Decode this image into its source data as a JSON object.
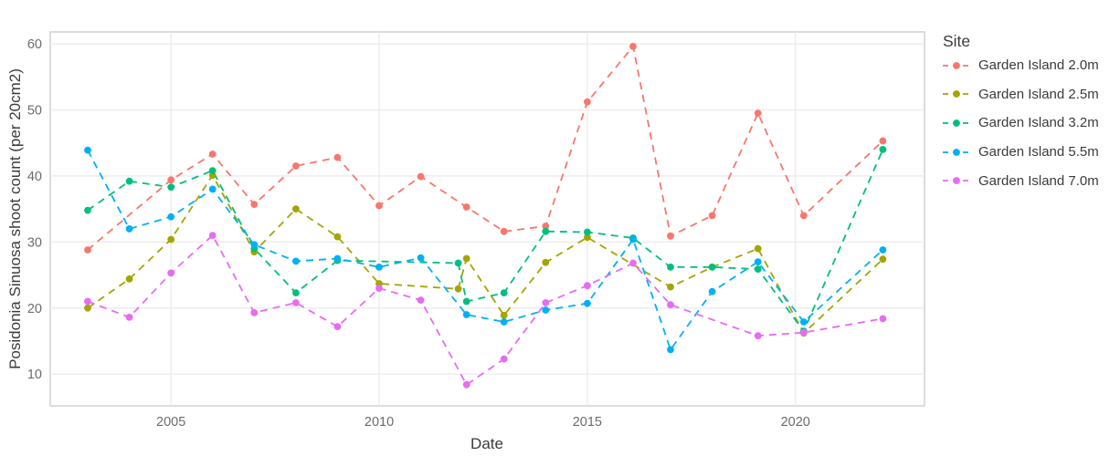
{
  "chart_data": {
    "type": "line",
    "title": "",
    "xlabel": "Date",
    "ylabel": "Posidonia Sinuosa shoot count (per 20cm2)",
    "legend_title": "Site",
    "legend_position": "right",
    "grid": true,
    "line_style": "dashed",
    "marker": "circle",
    "x_ticks": [
      2005,
      2010,
      2015,
      2020
    ],
    "y_ticks": [
      10,
      20,
      30,
      40,
      50,
      60
    ],
    "xlim": [
      2002.1,
      2023.1
    ],
    "ylim": [
      5.2,
      61.8
    ],
    "style": {
      "background": "#ffffff",
      "grid_color": "#ebebeb",
      "border_color": "#d4d4d4",
      "tick_label_color": "#6b6b6b",
      "axis_title_color": "#3a3a3a"
    },
    "series": [
      {
        "name": "Garden Island 2.0m",
        "color": "#F8766D",
        "points": [
          [
            2003,
            28.8
          ],
          [
            2005,
            39.4
          ],
          [
            2006,
            43.3
          ],
          [
            2007,
            35.7
          ],
          [
            2008,
            41.5
          ],
          [
            2009,
            42.8
          ],
          [
            2010,
            35.5
          ],
          [
            2011,
            39.9
          ],
          [
            2012.1,
            35.3
          ],
          [
            2013,
            31.6
          ],
          [
            2014,
            32.4
          ],
          [
            2015,
            51.2
          ],
          [
            2016.1,
            59.6
          ],
          [
            2017,
            30.9
          ],
          [
            2018,
            34
          ],
          [
            2019.1,
            49.5
          ],
          [
            2020.2,
            34
          ],
          [
            2022.1,
            45.3
          ]
        ]
      },
      {
        "name": "Garden Island 2.5m",
        "color": "#A3A500",
        "points": [
          [
            2003,
            20
          ],
          [
            2004,
            24.4
          ],
          [
            2005,
            30.4
          ],
          [
            2006,
            40.1
          ],
          [
            2007,
            28.5
          ],
          [
            2008,
            35
          ],
          [
            2009,
            30.8
          ],
          [
            2010,
            23.7
          ],
          [
            2011.9,
            22.9
          ],
          [
            2012.1,
            27.5
          ],
          [
            2013,
            18.9
          ],
          [
            2014,
            26.9
          ],
          [
            2015,
            30.7
          ],
          [
            2017,
            23.2
          ],
          [
            2018,
            26.2
          ],
          [
            2019.1,
            29
          ],
          [
            2020.2,
            16.2
          ],
          [
            2022.1,
            27.4
          ]
        ]
      },
      {
        "name": "Garden Island 3.2m",
        "color": "#00BF7D",
        "points": [
          [
            2003,
            34.8
          ],
          [
            2004,
            39.2
          ],
          [
            2005,
            38.3
          ],
          [
            2006,
            40.8
          ],
          [
            2007,
            29
          ],
          [
            2008,
            22.3
          ],
          [
            2009,
            27.2
          ],
          [
            2011.9,
            26.8
          ],
          [
            2012.1,
            21
          ],
          [
            2013,
            22.3
          ],
          [
            2014,
            31.6
          ],
          [
            2015,
            31.5
          ],
          [
            2016.1,
            30.6
          ],
          [
            2017,
            26.2
          ],
          [
            2018,
            26.2
          ],
          [
            2019.1,
            25.9
          ],
          [
            2020.2,
            16.5
          ],
          [
            2022.1,
            44
          ]
        ]
      },
      {
        "name": "Garden Island 5.5m",
        "color": "#00B0F6",
        "points": [
          [
            2003,
            43.9
          ],
          [
            2004,
            32
          ],
          [
            2005,
            33.8
          ],
          [
            2006,
            38
          ],
          [
            2007,
            29.6
          ],
          [
            2008,
            27.1
          ],
          [
            2009,
            27.5
          ],
          [
            2010,
            26.2
          ],
          [
            2011,
            27.6
          ],
          [
            2012.1,
            19
          ],
          [
            2013,
            17.9
          ],
          [
            2014,
            19.7
          ],
          [
            2015,
            20.7
          ],
          [
            2016.1,
            30.4
          ],
          [
            2017,
            13.7
          ],
          [
            2018,
            22.5
          ],
          [
            2019.1,
            27
          ],
          [
            2020.2,
            17.9
          ],
          [
            2022.1,
            28.8
          ]
        ]
      },
      {
        "name": "Garden Island 7.0m",
        "color": "#E76BF3",
        "points": [
          [
            2003,
            21
          ],
          [
            2004,
            18.6
          ],
          [
            2005,
            25.3
          ],
          [
            2006,
            31
          ],
          [
            2007,
            19.3
          ],
          [
            2008,
            20.8
          ],
          [
            2009,
            17.2
          ],
          [
            2010,
            23
          ],
          [
            2011,
            21.2
          ],
          [
            2012.1,
            8.4
          ],
          [
            2013,
            12.3
          ],
          [
            2014,
            20.8
          ],
          [
            2015,
            23.4
          ],
          [
            2016.1,
            26.8
          ],
          [
            2017,
            20.5
          ],
          [
            2019.1,
            15.8
          ],
          [
            2020.2,
            16.3
          ],
          [
            2022.1,
            18.4
          ]
        ]
      }
    ]
  }
}
